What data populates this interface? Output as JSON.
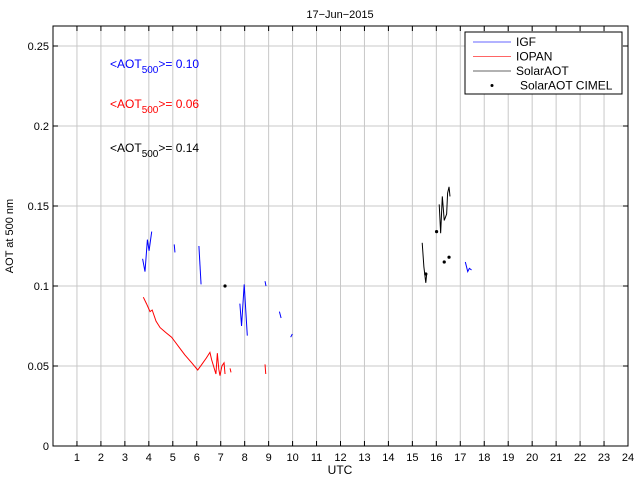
{
  "chart_data": {
    "type": "line",
    "title": "17−Jun−2015",
    "xlabel": "UTC",
    "ylabel": "AOT at 500 nm",
    "xlim": [
      0,
      24
    ],
    "ylim": [
      0,
      0.2625
    ],
    "xticks": [
      1,
      2,
      3,
      4,
      5,
      6,
      7,
      8,
      9,
      10,
      11,
      12,
      13,
      14,
      15,
      16,
      17,
      18,
      19,
      20,
      21,
      22,
      23,
      24
    ],
    "yticks": [
      0,
      0.05,
      0.1,
      0.15,
      0.2,
      0.25
    ],
    "ytick_labels": [
      "0",
      "0.05",
      "0.1",
      "0.15",
      "0.2",
      "0.25"
    ],
    "grid": true,
    "legend_position": "top-right",
    "series": [
      {
        "name": "IGF",
        "color": "#0000ff",
        "kind": "line",
        "segments": [
          [
            [
              3.74,
              0.117
            ],
            [
              3.84,
              0.109
            ],
            [
              3.94,
              0.129
            ],
            [
              4.01,
              0.122
            ],
            [
              4.12,
              0.134
            ]
          ],
          [
            [
              5.06,
              0.126
            ],
            [
              5.09,
              0.121
            ]
          ],
          [
            [
              6.09,
              0.125
            ],
            [
              6.18,
              0.101
            ]
          ],
          [
            [
              7.8,
              0.089
            ],
            [
              7.87,
              0.075
            ],
            [
              7.98,
              0.101
            ],
            [
              8.11,
              0.069
            ]
          ],
          [
            [
              8.85,
              0.103
            ],
            [
              8.89,
              0.1
            ]
          ],
          [
            [
              9.45,
              0.084
            ],
            [
              9.52,
              0.08
            ]
          ],
          [
            [
              9.92,
              0.068
            ],
            [
              9.99,
              0.07
            ]
          ],
          [
            [
              17.21,
              0.115
            ],
            [
              17.31,
              0.109
            ],
            [
              17.38,
              0.111
            ],
            [
              17.47,
              0.11
            ]
          ]
        ]
      },
      {
        "name": "IOPAN",
        "color": "#ff0000",
        "kind": "line",
        "segments": [
          [
            [
              3.77,
              0.093
            ],
            [
              3.9,
              0.089
            ],
            [
              4.05,
              0.084
            ],
            [
              4.14,
              0.085
            ],
            [
              4.3,
              0.078
            ],
            [
              4.47,
              0.074
            ],
            [
              4.7,
              0.071
            ],
            [
              4.95,
              0.068
            ],
            [
              5.1,
              0.065
            ],
            [
              5.3,
              0.061
            ],
            [
              5.5,
              0.057
            ],
            [
              5.79,
              0.052
            ],
            [
              6.04,
              0.0475
            ],
            [
              6.21,
              0.051
            ],
            [
              6.4,
              0.055
            ],
            [
              6.55,
              0.0585
            ],
            [
              6.62,
              0.054
            ],
            [
              6.7,
              0.05
            ],
            [
              6.8,
              0.045
            ],
            [
              6.86,
              0.058
            ],
            [
              6.92,
              0.048
            ],
            [
              6.97,
              0.044
            ],
            [
              7.05,
              0.05
            ],
            [
              7.14,
              0.052
            ],
            [
              7.18,
              0.045
            ]
          ],
          [
            [
              7.39,
              0.0485
            ],
            [
              7.43,
              0.046
            ]
          ],
          [
            [
              8.85,
              0.051
            ],
            [
              8.88,
              0.045
            ]
          ]
        ]
      },
      {
        "name": "SolarAOT",
        "color": "#000000",
        "kind": "line",
        "segments": [
          [
            [
              15.41,
              0.127
            ],
            [
              15.48,
              0.112
            ],
            [
              15.56,
              0.102
            ],
            [
              15.6,
              0.108
            ]
          ],
          [
            [
              16.12,
              0.151
            ],
            [
              16.18,
              0.133
            ],
            [
              16.25,
              0.156
            ],
            [
              16.33,
              0.141
            ],
            [
              16.43,
              0.145
            ],
            [
              16.47,
              0.158
            ],
            [
              16.53,
              0.162
            ],
            [
              16.57,
              0.156
            ]
          ]
        ]
      },
      {
        "name": "SolarAOT CIMEL",
        "color": "#000000",
        "kind": "points",
        "points": [
          [
            7.18,
            0.1
          ],
          [
            15.56,
            0.1075
          ],
          [
            16.01,
            0.134
          ],
          [
            16.33,
            0.115
          ],
          [
            16.53,
            0.118
          ]
        ]
      }
    ],
    "annotations": [
      {
        "prefix": "<AOT",
        "sub": "500",
        "suffix": ">= 0.10",
        "color": "#0000ff"
      },
      {
        "prefix": "<AOT",
        "sub": "500",
        "suffix": ">= 0.06",
        "color": "#ff0000"
      },
      {
        "prefix": "<AOT",
        "sub": "500",
        "suffix": ">= 0.14",
        "color": "#000000"
      }
    ]
  }
}
